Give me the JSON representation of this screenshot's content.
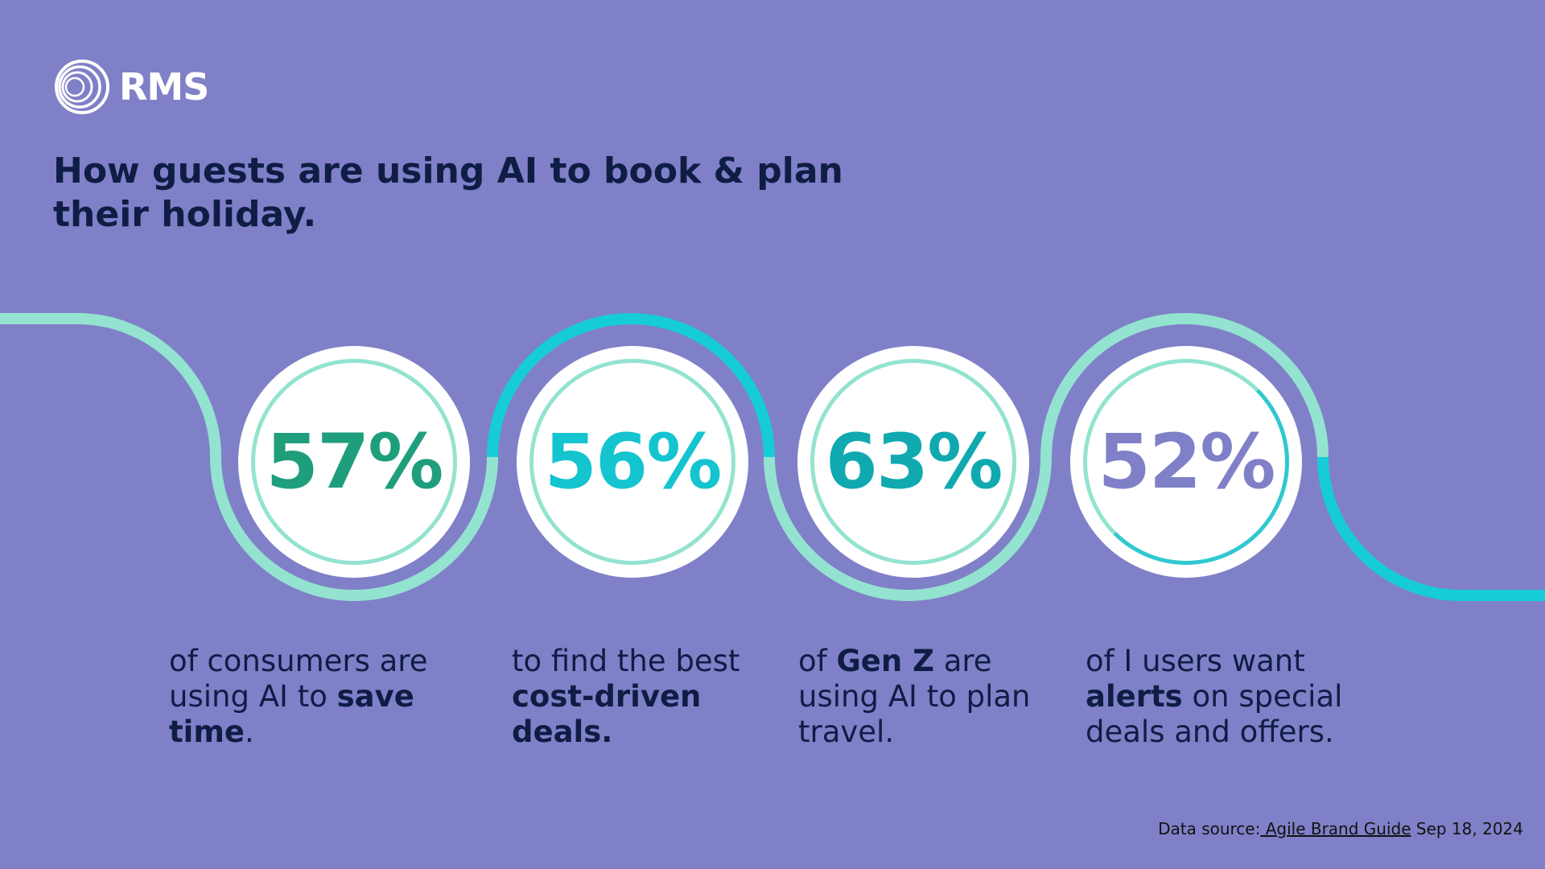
{
  "brand": {
    "name": "RMS"
  },
  "title": "How guests are using AI to book & plan their holiday.",
  "stats": [
    {
      "value": "57%",
      "color": "#1f9e7c",
      "text_a": "of consumers are using AI to ",
      "bold_a": "save time",
      "text_b": ".",
      "bold_b": ""
    },
    {
      "value": "56%",
      "color": "#14c4cf",
      "text_a": "to find the best ",
      "bold_a": "cost-driven deals.",
      "text_b": "",
      "bold_b": ""
    },
    {
      "value": "63%",
      "color": "#11a9b0",
      "text_a": "of ",
      "bold_a": "Gen Z",
      "text_b": " are using AI to plan travel.",
      "bold_b": ""
    },
    {
      "value": "52%",
      "color": "#8080c8",
      "text_a": "of I users want ",
      "bold_a": "alerts",
      "text_b": " on special deals and offers.",
      "bold_b": ""
    }
  ],
  "source": {
    "prefix": "Data source:",
    "link": " Agile Brand Guide",
    "date": " Sep 18, 2024"
  },
  "colors": {
    "background": "#8080c8",
    "wave_light": "#93e3d0",
    "wave_bright": "#16ccd8",
    "title": "#0f1d45"
  }
}
